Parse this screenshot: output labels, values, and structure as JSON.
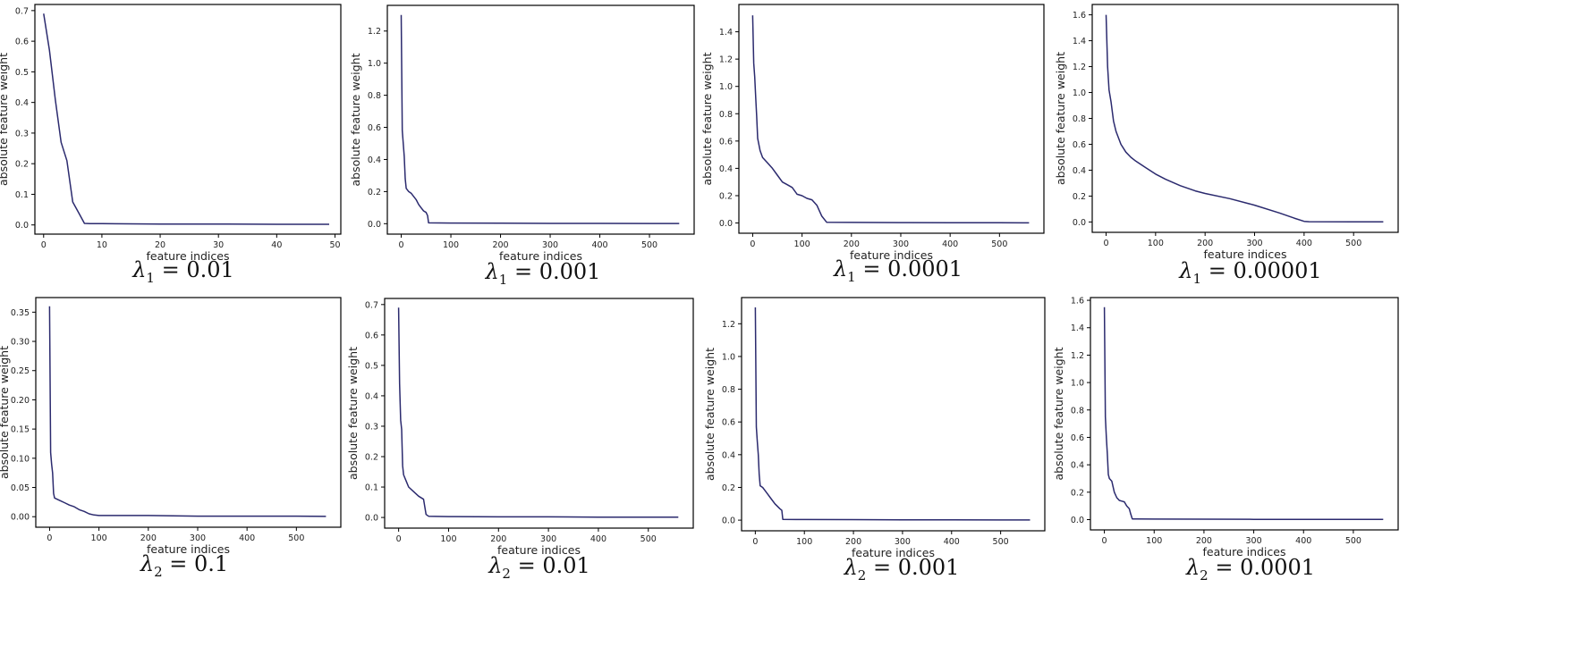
{
  "chart_data": [
    {
      "type": "line",
      "caption": "λ1 = 0.01",
      "lambda_symbol": "λ",
      "lambda_index": "1",
      "lambda_value": "= 0.01",
      "xlabel": "feature indices",
      "ylabel": "absolute feature weight",
      "xlim": [
        -1.5,
        51
      ],
      "ylim": [
        -0.03,
        0.72
      ],
      "xticks": [
        0,
        10,
        20,
        30,
        40,
        50
      ],
      "yticks": [
        0.0,
        0.1,
        0.2,
        0.3,
        0.4,
        0.5,
        0.6,
        0.7
      ],
      "ytick_decimals": 1,
      "line_color": "#2b2a6e",
      "x": [
        0,
        1,
        2,
        3,
        4,
        5,
        6,
        7,
        8,
        10,
        20,
        30,
        40,
        49
      ],
      "y": [
        0.69,
        0.57,
        0.41,
        0.27,
        0.21,
        0.075,
        0.04,
        0.005,
        0.004,
        0.004,
        0.003,
        0.003,
        0.002,
        0.002
      ]
    },
    {
      "type": "line",
      "caption": "λ1 = 0.001",
      "lambda_symbol": "λ",
      "lambda_index": "1",
      "lambda_value": "= 0.001",
      "xlabel": "feature indices",
      "ylabel": "absolute feature weight",
      "xlim": [
        -28,
        590
      ],
      "ylim": [
        -0.065,
        1.36
      ],
      "xticks": [
        0,
        100,
        200,
        300,
        400,
        500
      ],
      "yticks": [
        0.0,
        0.2,
        0.4,
        0.6,
        0.8,
        1.0,
        1.2
      ],
      "ytick_decimals": 1,
      "line_color": "#2b2a6e",
      "x": [
        0,
        2,
        4,
        6,
        8,
        10,
        15,
        20,
        25,
        30,
        35,
        40,
        45,
        50,
        53,
        55,
        100,
        200,
        300,
        400,
        500,
        560
      ],
      "y": [
        1.3,
        0.58,
        0.5,
        0.42,
        0.28,
        0.22,
        0.2,
        0.19,
        0.17,
        0.15,
        0.12,
        0.1,
        0.08,
        0.07,
        0.05,
        0.005,
        0.004,
        0.003,
        0.002,
        0.002,
        0.001,
        0.001
      ]
    },
    {
      "type": "line",
      "caption": "λ1 = 0.0001",
      "lambda_symbol": "λ",
      "lambda_index": "1",
      "lambda_value": "= 0.0001",
      "xlabel": "feature indices",
      "ylabel": "absolute feature weight",
      "xlim": [
        -28,
        590
      ],
      "ylim": [
        -0.075,
        1.6
      ],
      "xticks": [
        0,
        100,
        200,
        300,
        400,
        500
      ],
      "yticks": [
        0.0,
        0.2,
        0.4,
        0.6,
        0.8,
        1.0,
        1.2,
        1.4
      ],
      "ytick_decimals": 1,
      "line_color": "#2b2a6e",
      "x": [
        0,
        2,
        4,
        6,
        8,
        10,
        15,
        20,
        30,
        40,
        50,
        60,
        70,
        80,
        90,
        100,
        110,
        120,
        130,
        140,
        150,
        200,
        300,
        400,
        500,
        560
      ],
      "y": [
        1.52,
        1.17,
        1.07,
        0.92,
        0.78,
        0.62,
        0.53,
        0.48,
        0.44,
        0.4,
        0.35,
        0.3,
        0.28,
        0.26,
        0.21,
        0.2,
        0.18,
        0.17,
        0.13,
        0.05,
        0.005,
        0.004,
        0.003,
        0.002,
        0.002,
        0.001
      ]
    },
    {
      "type": "line",
      "caption": "λ1 = 0.00001",
      "lambda_symbol": "λ",
      "lambda_index": "1",
      "lambda_value": "= 0.00001",
      "xlabel": "feature indices",
      "ylabel": "absolute feature weight",
      "xlim": [
        -28,
        590
      ],
      "ylim": [
        -0.08,
        1.68
      ],
      "xticks": [
        0,
        100,
        200,
        300,
        400,
        500
      ],
      "yticks": [
        0.0,
        0.2,
        0.4,
        0.6,
        0.8,
        1.0,
        1.2,
        1.4,
        1.6
      ],
      "ytick_decimals": 1,
      "line_color": "#2b2a6e",
      "x": [
        0,
        3,
        6,
        10,
        15,
        20,
        30,
        40,
        50,
        60,
        80,
        100,
        120,
        150,
        180,
        200,
        250,
        300,
        350,
        380,
        400,
        410,
        500,
        560
      ],
      "y": [
        1.6,
        1.2,
        1.02,
        0.93,
        0.78,
        0.7,
        0.6,
        0.54,
        0.5,
        0.47,
        0.42,
        0.37,
        0.33,
        0.28,
        0.24,
        0.22,
        0.18,
        0.13,
        0.07,
        0.03,
        0.005,
        0.002,
        0.001,
        0.001
      ]
    },
    {
      "type": "line",
      "caption": "λ2 = 0.1",
      "lambda_symbol": "λ",
      "lambda_index": "2",
      "lambda_value": "= 0.1",
      "xlabel": "feature indices",
      "ylabel": "absolute feature weight",
      "xlim": [
        -28,
        590
      ],
      "ylim": [
        -0.018,
        0.375
      ],
      "xticks": [
        0,
        100,
        200,
        300,
        400,
        500
      ],
      "yticks": [
        0.0,
        0.05,
        0.1,
        0.15,
        0.2,
        0.25,
        0.3,
        0.35
      ],
      "ytick_decimals": 2,
      "line_color": "#2b2a6e",
      "x": [
        0,
        2,
        4,
        6,
        8,
        10,
        20,
        30,
        40,
        50,
        60,
        70,
        80,
        90,
        100,
        200,
        300,
        400,
        500,
        560
      ],
      "y": [
        0.36,
        0.11,
        0.09,
        0.075,
        0.04,
        0.032,
        0.028,
        0.024,
        0.02,
        0.017,
        0.012,
        0.009,
        0.005,
        0.003,
        0.002,
        0.002,
        0.001,
        0.001,
        0.001,
        0.0005
      ]
    },
    {
      "type": "line",
      "caption": "λ2 = 0.01",
      "lambda_symbol": "λ",
      "lambda_index": "2",
      "lambda_value": "= 0.01",
      "xlabel": "feature indices",
      "ylabel": "absolute feature weight",
      "xlim": [
        -28,
        590
      ],
      "ylim": [
        -0.035,
        0.72
      ],
      "xticks": [
        0,
        100,
        200,
        300,
        400,
        500
      ],
      "yticks": [
        0.0,
        0.1,
        0.2,
        0.3,
        0.4,
        0.5,
        0.6,
        0.7
      ],
      "ytick_decimals": 1,
      "line_color": "#2b2a6e",
      "x": [
        0,
        2,
        4,
        6,
        8,
        10,
        15,
        20,
        30,
        40,
        50,
        55,
        60,
        100,
        200,
        300,
        400,
        500,
        560
      ],
      "y": [
        0.69,
        0.44,
        0.32,
        0.29,
        0.17,
        0.14,
        0.12,
        0.1,
        0.085,
        0.07,
        0.06,
        0.01,
        0.004,
        0.003,
        0.002,
        0.002,
        0.001,
        0.001,
        0.001
      ]
    },
    {
      "type": "line",
      "caption": "λ2 = 0.001",
      "lambda_symbol": "λ",
      "lambda_index": "2",
      "lambda_value": "= 0.001",
      "xlabel": "feature indices",
      "ylabel": "absolute feature weight",
      "xlim": [
        -28,
        590
      ],
      "ylim": [
        -0.065,
        1.36
      ],
      "xticks": [
        0,
        100,
        200,
        300,
        400,
        500
      ],
      "yticks": [
        0.0,
        0.2,
        0.4,
        0.6,
        0.8,
        1.0,
        1.2
      ],
      "ytick_decimals": 1,
      "line_color": "#2b2a6e",
      "x": [
        0,
        2,
        4,
        6,
        8,
        10,
        15,
        20,
        25,
        30,
        40,
        50,
        54,
        56,
        100,
        200,
        300,
        400,
        500,
        560
      ],
      "y": [
        1.3,
        0.57,
        0.48,
        0.4,
        0.28,
        0.21,
        0.2,
        0.18,
        0.16,
        0.14,
        0.1,
        0.07,
        0.06,
        0.005,
        0.004,
        0.003,
        0.002,
        0.002,
        0.001,
        0.001
      ]
    },
    {
      "type": "line",
      "caption": "λ2 = 0.0001",
      "lambda_symbol": "λ",
      "lambda_index": "2",
      "lambda_value": "= 0.0001",
      "xlabel": "feature indices",
      "ylabel": "absolute feature weight",
      "xlim": [
        -28,
        590
      ],
      "ylim": [
        -0.075,
        1.62
      ],
      "xticks": [
        0,
        100,
        200,
        300,
        400,
        500
      ],
      "yticks": [
        0.0,
        0.2,
        0.4,
        0.6,
        0.8,
        1.0,
        1.2,
        1.4,
        1.6
      ],
      "ytick_decimals": 1,
      "line_color": "#2b2a6e",
      "x": [
        0,
        2,
        4,
        6,
        8,
        10,
        15,
        20,
        25,
        30,
        35,
        40,
        45,
        50,
        53,
        56,
        100,
        200,
        300,
        400,
        500,
        560
      ],
      "y": [
        1.55,
        0.75,
        0.6,
        0.48,
        0.33,
        0.3,
        0.28,
        0.2,
        0.16,
        0.14,
        0.135,
        0.13,
        0.1,
        0.08,
        0.04,
        0.005,
        0.004,
        0.003,
        0.002,
        0.002,
        0.001,
        0.001
      ]
    }
  ]
}
